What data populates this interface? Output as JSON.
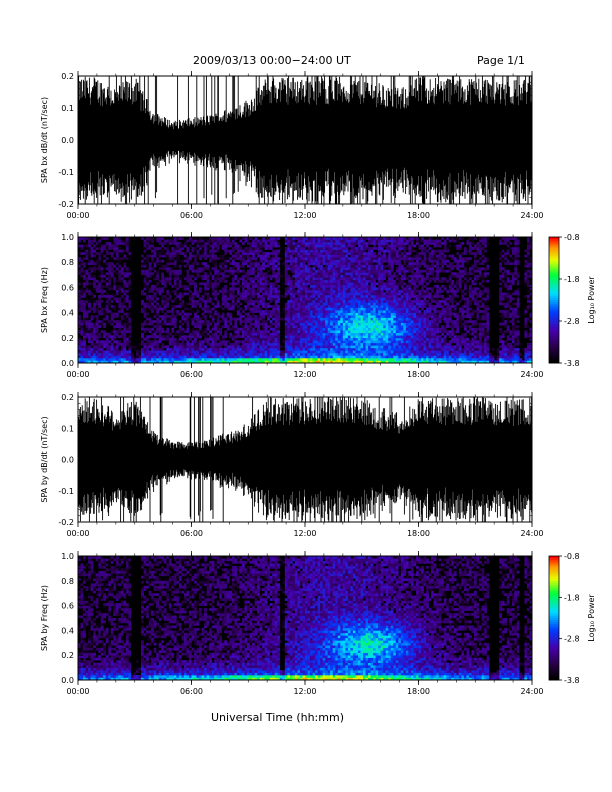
{
  "header": {
    "title": "2009/03/13  00:00−24:00 UT",
    "page": "Page 1/1"
  },
  "colors": {
    "background": "#ffffff",
    "trace": "#000000",
    "spectrogram_background": "#000000"
  },
  "colorbar": {
    "label": "Log₁₀ Power",
    "ticks": [
      "-0.8",
      "-1.8",
      "-2.8",
      "-3.8"
    ],
    "range": [
      -3.8,
      -0.8
    ],
    "colormap": "rainbow (black-purple-blue-cyan-green-yellow-red)"
  },
  "xlabel": "Universal Time (hh:mm)",
  "chart_data": [
    {
      "type": "line",
      "name": "bx_trace",
      "ylabel": "SPA bx dB/dt (nT/sec)",
      "x_ticks": [
        "00:00",
        "06:00",
        "12:00",
        "18:00",
        "24:00"
      ],
      "y_ticks": [
        "0.2",
        "0.1",
        "0.0",
        "-0.1",
        "-0.2"
      ],
      "xlim": [
        0,
        24
      ],
      "ylim": [
        -0.2,
        0.2
      ],
      "note": "dense broadband oscillation, amplitude saturating full range most of the day",
      "amplitude_envelope_hours": [
        0,
        1,
        2,
        3,
        4,
        5,
        6,
        7,
        8,
        9,
        10,
        11,
        12,
        13,
        14,
        15,
        16,
        17,
        18,
        19,
        20,
        21,
        22,
        23,
        24
      ],
      "amplitude_envelope_values": [
        0.2,
        0.2,
        0.17,
        0.2,
        0.09,
        0.06,
        0.07,
        0.08,
        0.1,
        0.13,
        0.2,
        0.2,
        0.2,
        0.2,
        0.2,
        0.2,
        0.18,
        0.16,
        0.2,
        0.2,
        0.2,
        0.2,
        0.2,
        0.19,
        0.2
      ]
    },
    {
      "type": "heatmap",
      "name": "bx_spectrogram",
      "ylabel": "SPA bx Freq (Hz)",
      "x_ticks": [
        "00:00",
        "06:00",
        "12:00",
        "18:00",
        "24:00"
      ],
      "y_ticks": [
        "1.0",
        "0.8",
        "0.6",
        "0.4",
        "0.2",
        "0.0"
      ],
      "xlim": [
        0,
        24
      ],
      "ylim": [
        0,
        1.0
      ],
      "zlim": [
        -3.8,
        -0.8
      ],
      "note": "power highest near 0 Hz; enhanced broadband activity 11-17 UT with peak near 15.5 UT, 0.3 Hz"
    },
    {
      "type": "line",
      "name": "by_trace",
      "ylabel": "SPA by dB/dt (nT/sec)",
      "x_ticks": [
        "00:00",
        "06:00",
        "12:00",
        "18:00",
        "24:00"
      ],
      "y_ticks": [
        "0.2",
        "0.1",
        "0.0",
        "-0.1",
        "-0.2"
      ],
      "xlim": [
        0,
        24
      ],
      "ylim": [
        -0.2,
        0.2
      ],
      "note": "dense broadband oscillation, amplitude saturating full range most of the day",
      "amplitude_envelope_hours": [
        0,
        1,
        2,
        3,
        4,
        5,
        6,
        7,
        8,
        9,
        10,
        11,
        12,
        13,
        14,
        15,
        16,
        17,
        18,
        19,
        20,
        21,
        22,
        23,
        24
      ],
      "amplitude_envelope_values": [
        0.2,
        0.2,
        0.16,
        0.2,
        0.09,
        0.06,
        0.06,
        0.07,
        0.09,
        0.12,
        0.2,
        0.2,
        0.2,
        0.2,
        0.2,
        0.2,
        0.17,
        0.15,
        0.2,
        0.2,
        0.2,
        0.2,
        0.2,
        0.19,
        0.2
      ]
    },
    {
      "type": "heatmap",
      "name": "by_spectrogram",
      "ylabel": "SPA by Freq (Hz)",
      "x_ticks": [
        "00:00",
        "06:00",
        "12:00",
        "18:00",
        "24:00"
      ],
      "y_ticks": [
        "1.0",
        "0.8",
        "0.6",
        "0.4",
        "0.2",
        "0.0"
      ],
      "xlim": [
        0,
        24
      ],
      "ylim": [
        0,
        1.0
      ],
      "zlim": [
        -3.8,
        -0.8
      ],
      "note": "power highest near 0 Hz; enhanced broadband activity 11-17 UT with peak near 15.5 UT, 0.3 Hz"
    }
  ]
}
